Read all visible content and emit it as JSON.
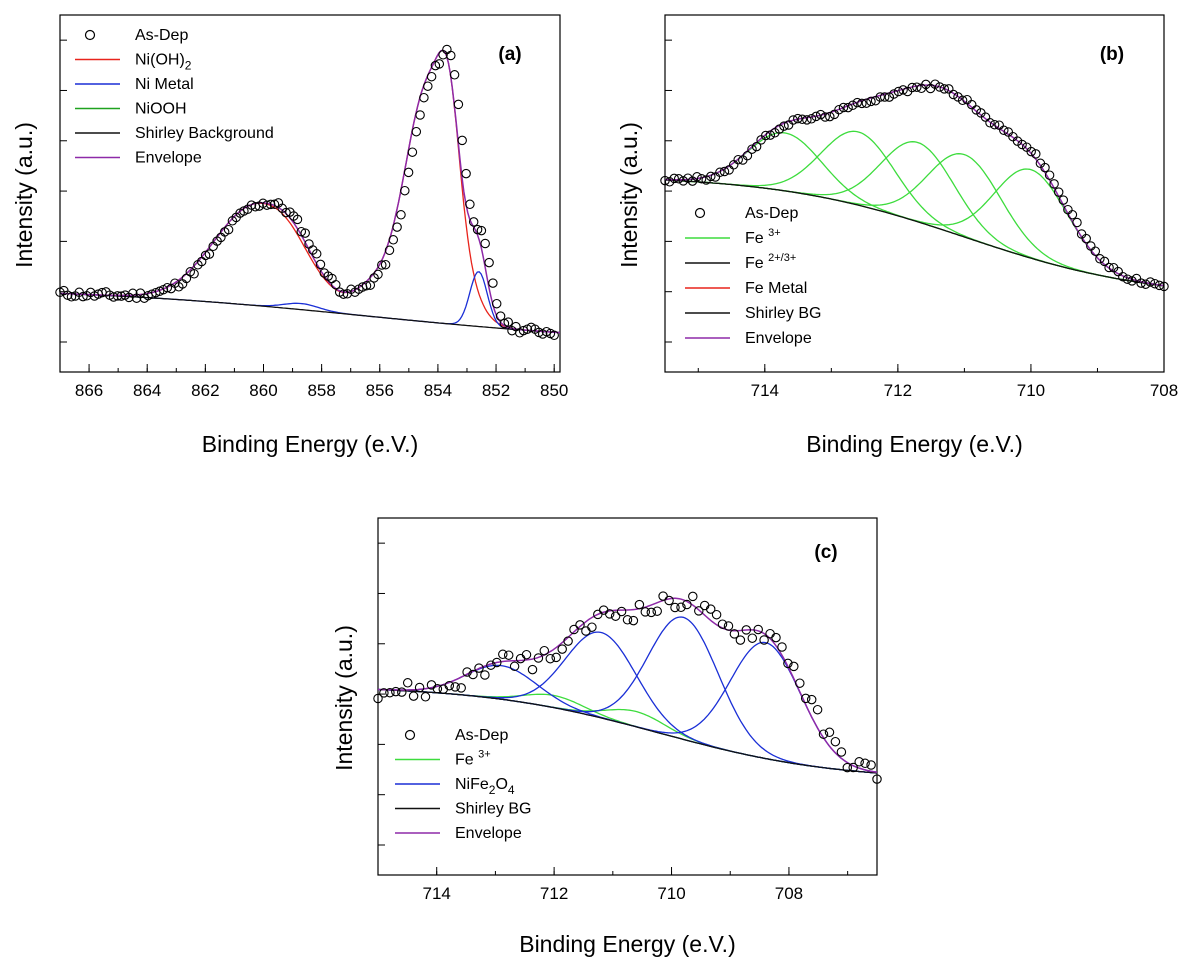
{
  "colors": {
    "ni_oh2": "#e8241c",
    "ni_metal": "#1a2fd6",
    "niooh": "#1fa21f",
    "shirley": "#111111",
    "envelope": "#8e2aa8",
    "fe3": "#3ddc3d",
    "fe23": "#111111",
    "fe_metal": "#e8241c",
    "nife2o4": "#1a2fd6",
    "markers": "#000000"
  },
  "chart_data": [
    {
      "type": "line",
      "panel": "(a)",
      "xlabel": "Binding Energy (e.V.)",
      "ylabel": "Intensity (a.u.)",
      "xlim": [
        867,
        849.8
      ],
      "x_reversed": true,
      "ylim": [
        0,
        1.17
      ],
      "y_ticks_labeled": false,
      "x_ticks": [
        "866",
        "864",
        "862",
        "860",
        "858",
        "856",
        "854",
        "852",
        "850"
      ],
      "legend_position": "top-left",
      "legend": [
        {
          "label": "As-Dep",
          "marker": "open-circle"
        },
        {
          "label": "Ni(OH)",
          "sub": "2",
          "color_key": "ni_oh2"
        },
        {
          "label": "Ni Metal",
          "color_key": "ni_metal"
        },
        {
          "label": "NiOOH",
          "color_key": "niooh"
        },
        {
          "label": "Shirley Background",
          "color_key": "shirley"
        },
        {
          "label": "Envelope",
          "color_key": "envelope"
        }
      ],
      "background": {
        "type": "shirley",
        "x_hi": 867,
        "x_lo": 850,
        "y_hi": 0.278,
        "y_lo": 0.09,
        "mid": 856.5,
        "width": 5
      },
      "components": [
        {
          "color_key": "ni_oh2",
          "peaks": [
            [
              860.2,
              0.33,
              1.5
            ],
            [
              859.1,
              0.03,
              0.6
            ],
            [
              856.3,
              0.07,
              0.6
            ],
            [
              854.3,
              0.78,
              0.85
            ],
            [
              853.6,
              0.28,
              0.35
            ]
          ]
        },
        {
          "color_key": "ni_metal",
          "peaks": [
            [
              858.7,
              0.02,
              0.6
            ],
            [
              852.6,
              0.18,
              0.3
            ]
          ]
        }
      ],
      "envelope": {
        "color_key": "envelope",
        "peaks": [
          [
            860.2,
            0.33,
            1.5
          ],
          [
            859.1,
            0.03,
            0.6
          ],
          [
            858.7,
            0.02,
            0.6
          ],
          [
            856.3,
            0.07,
            0.6
          ],
          [
            854.3,
            0.78,
            0.85
          ],
          [
            853.6,
            0.28,
            0.35
          ],
          [
            852.6,
            0.18,
            0.3
          ]
        ]
      },
      "scatter": {
        "start": 867,
        "end": 850,
        "count": 130,
        "shift": 0.15,
        "noise": 0.012
      },
      "labels_in_plot": []
    },
    {
      "type": "line",
      "panel": "(b)",
      "xlabel": "Binding Energy (e.V.)",
      "ylabel": "Intensity (a.u.)",
      "xlim": [
        715.5,
        708
      ],
      "x_reversed": true,
      "ylim": [
        0,
        1.17
      ],
      "y_ticks_labeled": false,
      "x_ticks": [
        "714",
        "712",
        "710",
        "708"
      ],
      "legend_position": "bottom-left",
      "legend": [
        {
          "label": "As-Dep",
          "marker": "open-circle"
        },
        {
          "label": "Fe ",
          "sup": "3+",
          "color_key": "fe3"
        },
        {
          "label": "Fe ",
          "sup": "2+/3+",
          "color_key": "fe23"
        },
        {
          "label": "Fe Metal",
          "color_key": "fe_metal"
        },
        {
          "label": "Shirley BG",
          "color_key": "shirley"
        },
        {
          "label": "Envelope",
          "color_key": "envelope"
        }
      ],
      "background": {
        "type": "shirley",
        "x_hi": 715.5,
        "x_lo": 708,
        "y_hi": 0.645,
        "y_lo": 0.24,
        "mid": 711,
        "width": 1.4
      },
      "components": [
        {
          "color_key": "fe3",
          "peaks": [
            [
              713.7,
              0.19,
              0.55
            ]
          ]
        },
        {
          "color_key": "fe3",
          "peaks": [
            [
              712.6,
              0.24,
              0.55
            ]
          ]
        },
        {
          "color_key": "fe3",
          "peaks": [
            [
              711.7,
              0.26,
              0.55
            ]
          ]
        },
        {
          "color_key": "fe3",
          "peaks": [
            [
              711.0,
              0.27,
              0.55
            ]
          ]
        },
        {
          "color_key": "fe3",
          "peaks": [
            [
              710.0,
              0.29,
              0.55
            ]
          ]
        }
      ],
      "envelope": {
        "color_key": "envelope",
        "peaks": [
          [
            713.7,
            0.19,
            0.55
          ],
          [
            712.6,
            0.24,
            0.55
          ],
          [
            711.7,
            0.26,
            0.55
          ],
          [
            711.0,
            0.27,
            0.55
          ],
          [
            710.0,
            0.29,
            0.55
          ]
        ]
      },
      "scatter": {
        "start": 715.5,
        "end": 708,
        "count": 110,
        "shift": 0.05,
        "noise": 0.008
      },
      "labels_in_plot": []
    },
    {
      "type": "line",
      "panel": "(c)",
      "xlabel": "Binding Energy (e.V.)",
      "ylabel": "Intensity (a.u.)",
      "xlim": [
        715,
        706.5
      ],
      "x_reversed": true,
      "ylim": [
        0,
        1.17
      ],
      "y_ticks_labeled": false,
      "x_ticks": [
        "714",
        "712",
        "710",
        "708"
      ],
      "legend_position": "bottom-left",
      "legend": [
        {
          "label": "As-Dep",
          "marker": "open-circle"
        },
        {
          "label": "Fe ",
          "sup": "3+",
          "color_key": "fe3"
        },
        {
          "label": "NiFe",
          "sub": "2",
          "tail": "O",
          "sub2": "4",
          "color_key": "nife2o4"
        },
        {
          "label": "Shirley BG",
          "color_key": "shirley"
        },
        {
          "label": "Envelope",
          "color_key": "envelope"
        }
      ],
      "background": {
        "type": "shirley",
        "x_hi": 715,
        "x_lo": 706.8,
        "y_hi": 0.62,
        "y_lo": 0.31,
        "mid": 710.2,
        "width": 1.5
      },
      "components": [
        {
          "color_key": "fe3",
          "peaks": [
            [
              712.0,
              0.04,
              0.5
            ]
          ]
        },
        {
          "color_key": "fe3",
          "peaks": [
            [
              710.6,
              0.05,
              0.5
            ]
          ]
        },
        {
          "color_key": "nife2o4",
          "peaks": [
            [
              712.9,
              0.11,
              0.6
            ]
          ]
        },
        {
          "color_key": "nife2o4",
          "peaks": [
            [
              711.2,
              0.28,
              0.6
            ]
          ]
        },
        {
          "color_key": "nife2o4",
          "peaks": [
            [
              709.8,
              0.4,
              0.6
            ]
          ]
        },
        {
          "color_key": "nife2o4",
          "peaks": [
            [
              708.4,
              0.38,
              0.6
            ]
          ]
        }
      ],
      "envelope": {
        "color_key": "envelope",
        "peaks": [
          [
            712.0,
            0.04,
            0.5
          ],
          [
            710.6,
            0.05,
            0.5
          ],
          [
            712.9,
            0.11,
            0.6
          ],
          [
            711.2,
            0.28,
            0.6
          ],
          [
            709.8,
            0.4,
            0.6
          ],
          [
            708.4,
            0.38,
            0.6
          ]
        ]
      },
      "scatter": {
        "start": 715,
        "end": 706.5,
        "count": 85,
        "shift": 0.1,
        "noise": 0.03
      },
      "labels_in_plot": []
    }
  ]
}
